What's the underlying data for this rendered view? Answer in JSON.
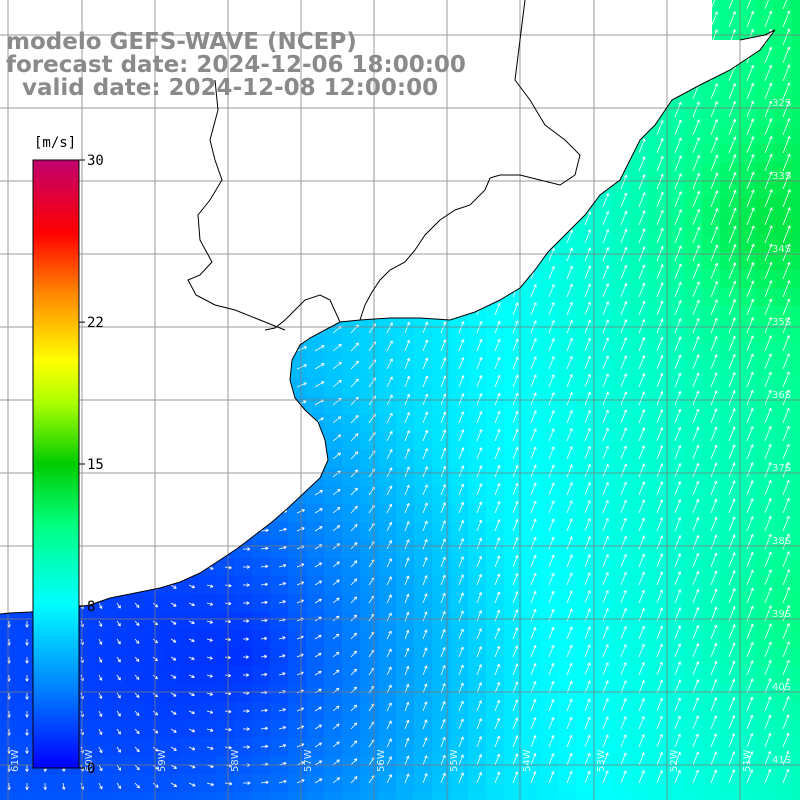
{
  "title": {
    "model": "modelo GEFS-WAVE (NCEP)",
    "forecast": "forecast date: 2024-12-06 18:00:00",
    "valid": "  valid date: 2024-12-08 12:00:00"
  },
  "colorbar": {
    "unit": "[m/s]",
    "min": 0,
    "max": 30,
    "ticks": [
      {
        "value": 30,
        "label": "30"
      },
      {
        "value": 22,
        "label": "22"
      },
      {
        "value": 15,
        "label": "15"
      },
      {
        "value": 8,
        "label": "8"
      },
      {
        "value": 0,
        "label": "0"
      }
    ],
    "colors": [
      "#0000ff",
      "#00aaff",
      "#00ffff",
      "#00ff88",
      "#00cc00",
      "#88ff00",
      "#ffff00",
      "#ff8800",
      "#ff0000",
      "#ff0088",
      "#cc0077"
    ]
  },
  "map": {
    "grid": true,
    "coastline_color": "#000000",
    "land_color": "#ffffff",
    "longitude_labels": [
      "61W",
      "60W",
      "59W",
      "58W",
      "57W",
      "56W",
      "55W",
      "54W",
      "53W",
      "52W",
      "51W"
    ],
    "latitude_labels": [
      "32S",
      "33S",
      "34S",
      "35S",
      "36S",
      "37S",
      "38S",
      "39S",
      "40S",
      "41S"
    ]
  },
  "wind_field": {
    "variable": "wind speed",
    "unit": "m/s",
    "description_of_pattern": "",
    "speed_range_visible": [
      1,
      13
    ]
  }
}
